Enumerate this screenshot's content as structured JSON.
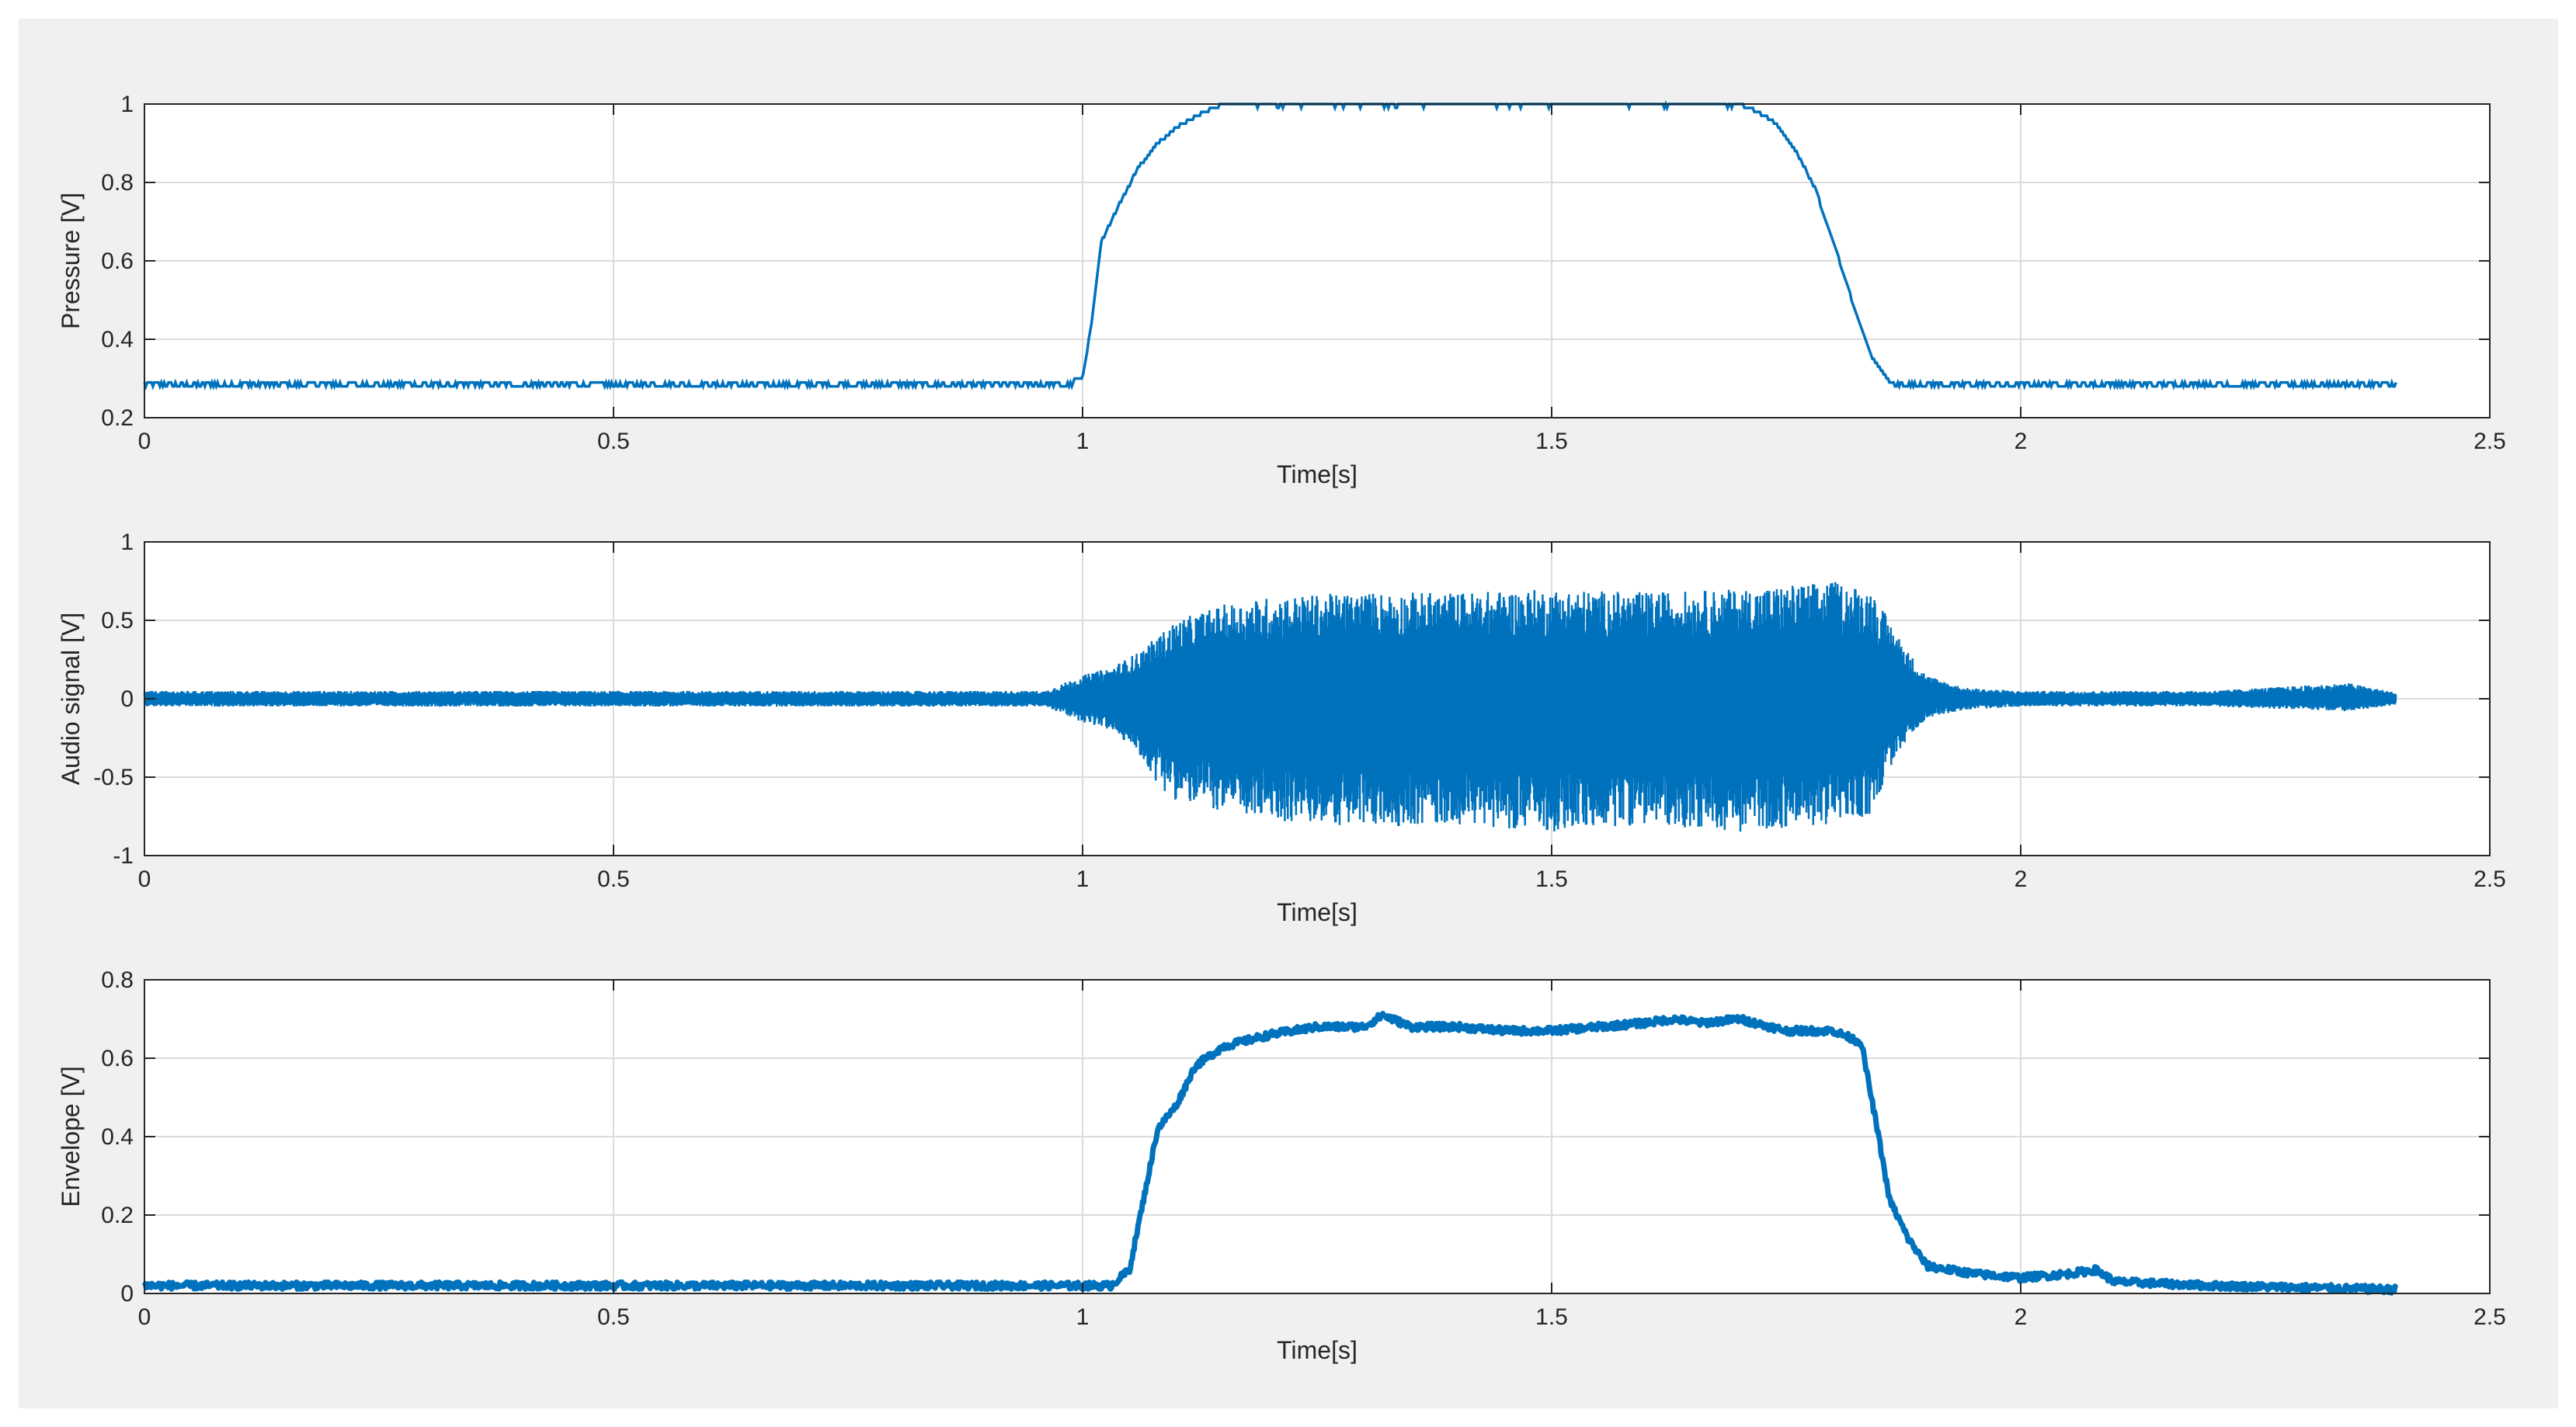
{
  "figure": {
    "background": "#f0f0f0",
    "axes_background": "#ffffff",
    "line_color": "#0072bd",
    "grid_color": "#dcdcdc",
    "axis_color": "#262626"
  },
  "chart_data": [
    {
      "type": "line",
      "title": "",
      "xlabel": "Time[s]",
      "ylabel": "Pressure [V]",
      "xlim": [
        0,
        2.5
      ],
      "ylim": [
        0.2,
        1
      ],
      "xticks": [
        0,
        0.5,
        1,
        1.5,
        2,
        2.5
      ],
      "xtick_labels": [
        "0",
        "0.5",
        "1",
        "1.5",
        "2",
        "2.5"
      ],
      "yticks": [
        0.2,
        0.4,
        0.6,
        0.8,
        1
      ],
      "ytick_labels": [
        "0.2",
        "0.4",
        "0.6",
        "0.8",
        "1"
      ],
      "grid": true,
      "series": [
        {
          "x": [
            0,
            0.98,
            1.0,
            1.01,
            1.02,
            1.04,
            1.06,
            1.08,
            1.1,
            1.13,
            1.15,
            1.7,
            1.72,
            1.74,
            1.76,
            1.78,
            1.8,
            1.82,
            1.84,
            1.86,
            2.4
          ],
          "y": [
            0.29,
            0.29,
            0.3,
            0.45,
            0.65,
            0.75,
            0.84,
            0.9,
            0.94,
            0.98,
            1.0,
            1.0,
            0.98,
            0.95,
            0.88,
            0.79,
            0.65,
            0.5,
            0.36,
            0.29,
            0.29
          ]
        }
      ]
    },
    {
      "type": "line",
      "title": "",
      "xlabel": "Time[s]",
      "ylabel": "Audio signal [V]",
      "xlim": [
        0,
        2.5
      ],
      "ylim": [
        -1,
        1
      ],
      "xticks": [
        0,
        0.5,
        1,
        1.5,
        2,
        2.5
      ],
      "xtick_labels": [
        "0",
        "0.5",
        "1",
        "1.5",
        "2",
        "2.5"
      ],
      "yticks": [
        -1,
        -0.5,
        0,
        0.5,
        1
      ],
      "ytick_labels": [
        "-1",
        "-0.5",
        "0",
        "0.5",
        "1"
      ],
      "grid": true,
      "series": [
        {
          "x": [
            0,
            0.96,
            0.98,
            1.0,
            1.03,
            1.06,
            1.08,
            1.1,
            1.15,
            1.2,
            1.3,
            1.4,
            1.5,
            1.6,
            1.7,
            1.8,
            1.84,
            1.86,
            1.88,
            1.9,
            1.94,
            2.0,
            2.2,
            2.35,
            2.4
          ],
          "y_upper": [
            0.05,
            0.05,
            0.1,
            0.15,
            0.2,
            0.3,
            0.4,
            0.5,
            0.6,
            0.65,
            0.68,
            0.68,
            0.7,
            0.68,
            0.7,
            0.75,
            0.7,
            0.5,
            0.3,
            0.15,
            0.07,
            0.05,
            0.05,
            0.1,
            0.04
          ],
          "y_lower": [
            -0.05,
            -0.05,
            -0.1,
            -0.15,
            -0.2,
            -0.35,
            -0.55,
            -0.65,
            -0.72,
            -0.78,
            -0.82,
            -0.8,
            -0.85,
            -0.8,
            -0.85,
            -0.8,
            -0.75,
            -0.45,
            -0.25,
            -0.12,
            -0.07,
            -0.05,
            -0.05,
            -0.08,
            -0.04
          ]
        }
      ]
    },
    {
      "type": "line",
      "title": "",
      "xlabel": "Time[s]",
      "ylabel": "Envelope [V]",
      "xlim": [
        0,
        2.5
      ],
      "ylim": [
        0,
        0.8
      ],
      "xticks": [
        0,
        0.5,
        1,
        1.5,
        2,
        2.5
      ],
      "xtick_labels": [
        "0",
        "0.5",
        "1",
        "1.5",
        "2",
        "2.5"
      ],
      "yticks": [
        0,
        0.2,
        0.4,
        0.6,
        0.8
      ],
      "ytick_labels": [
        "0",
        "0.2",
        "0.4",
        "0.6",
        "0.8"
      ],
      "grid": true,
      "series": [
        {
          "x": [
            0,
            0.5,
            1.0,
            1.03,
            1.05,
            1.07,
            1.08,
            1.1,
            1.12,
            1.15,
            1.2,
            1.25,
            1.3,
            1.32,
            1.35,
            1.4,
            1.45,
            1.5,
            1.55,
            1.6,
            1.63,
            1.66,
            1.7,
            1.75,
            1.8,
            1.83,
            1.85,
            1.86,
            1.88,
            1.9,
            1.95,
            2.0,
            2.05,
            2.08,
            2.1,
            2.2,
            2.4
          ],
          "y": [
            0.02,
            0.02,
            0.02,
            0.02,
            0.06,
            0.3,
            0.42,
            0.48,
            0.58,
            0.63,
            0.66,
            0.68,
            0.68,
            0.71,
            0.68,
            0.68,
            0.67,
            0.67,
            0.68,
            0.69,
            0.7,
            0.69,
            0.7,
            0.67,
            0.67,
            0.64,
            0.38,
            0.24,
            0.14,
            0.07,
            0.05,
            0.04,
            0.05,
            0.06,
            0.03,
            0.02,
            0.01
          ]
        }
      ]
    }
  ]
}
